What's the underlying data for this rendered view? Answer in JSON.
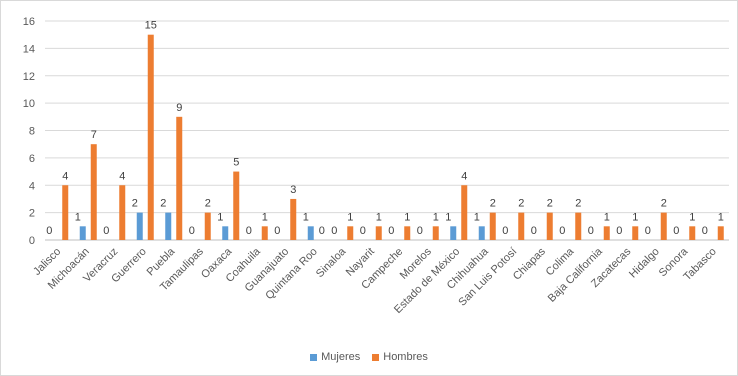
{
  "chart_data": {
    "type": "bar",
    "title": "",
    "xlabel": "",
    "ylabel": "",
    "ylim": [
      0,
      16
    ],
    "yticks": [
      0,
      2,
      4,
      6,
      8,
      10,
      12,
      14,
      16
    ],
    "grid": "horizontal",
    "legend_position": "bottom",
    "categories": [
      "Jalisco",
      "Michoacán",
      "Veracruz",
      "Guerrero",
      "Puebla",
      "Tamaulipas",
      "Oaxaca",
      "Coahuila",
      "Guanajuato",
      "Quintana Roo",
      "Sinaloa",
      "Nayarit",
      "Campeche",
      "Morelos",
      "Estado de México",
      "Chihuahua",
      "San Luis Potosí",
      "Chiapas",
      "Colima",
      "Baja California",
      "Zacatecas",
      "Hidalgo",
      "Sonora",
      "Tabasco"
    ],
    "series": [
      {
        "name": "Mujeres",
        "color": "#5B9BD5",
        "values": [
          0,
          1,
          0,
          2,
          2,
          0,
          1,
          0,
          0,
          1,
          0,
          0,
          0,
          0,
          1,
          1,
          0,
          0,
          0,
          0,
          0,
          0,
          0,
          0
        ]
      },
      {
        "name": "Hombres",
        "color": "#ED7D31",
        "values": [
          4,
          7,
          4,
          15,
          9,
          2,
          5,
          1,
          3,
          0,
          1,
          1,
          1,
          1,
          4,
          2,
          2,
          2,
          2,
          1,
          1,
          2,
          1,
          1
        ]
      }
    ]
  }
}
